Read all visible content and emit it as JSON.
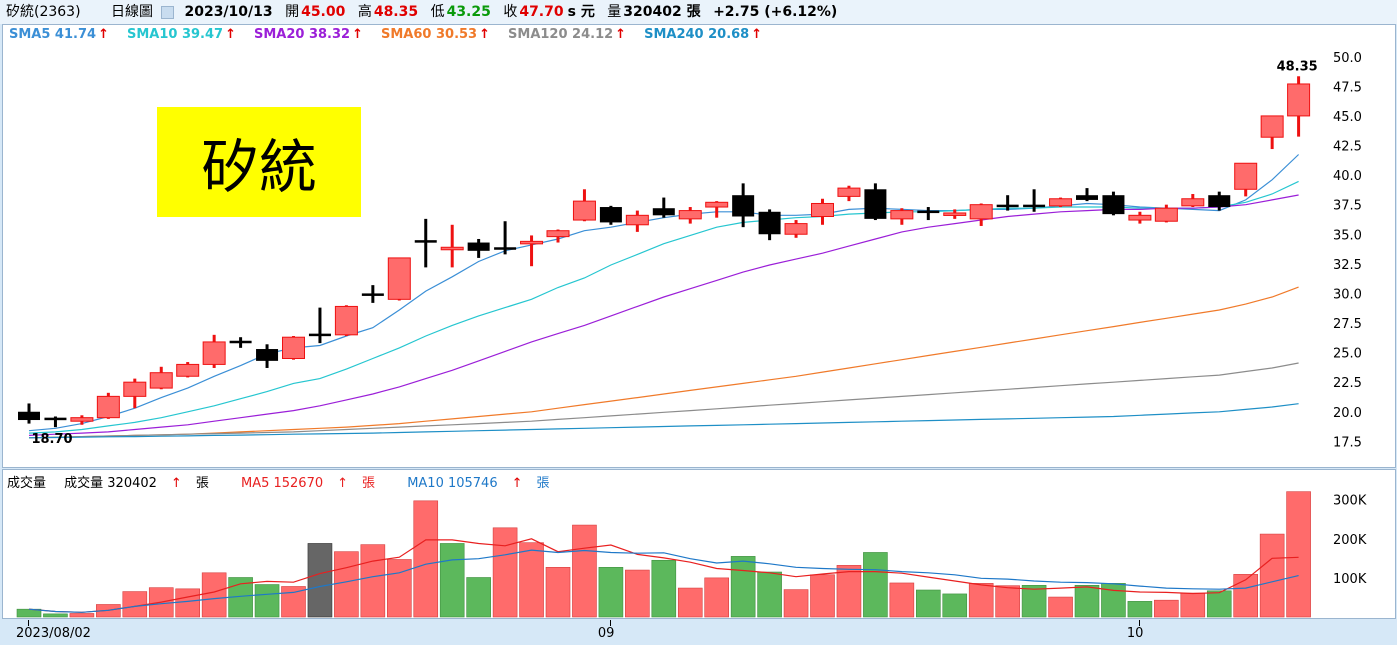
{
  "header": {
    "stock": "矽統(2363)",
    "period": "日線圖",
    "date": "2023/10/13",
    "open_label": "開",
    "open": "45.00",
    "high_label": "高",
    "high": "48.35",
    "low_label": "低",
    "low": "43.25",
    "close_label": "收",
    "close": "47.70",
    "unit": "s 元",
    "volume_label": "量",
    "volume": "320402 張",
    "change": "+2.75 (+6.12%)"
  },
  "title_box": "矽統",
  "sma_legend": [
    {
      "label": "SMA5 41.74",
      "color": "#3b8fd6"
    },
    {
      "label": "SMA10 39.47",
      "color": "#26c6d0"
    },
    {
      "label": "SMA20 38.32",
      "color": "#9b1fd8"
    },
    {
      "label": "SMA60 30.53",
      "color": "#f07a2a"
    },
    {
      "label": "SMA120 24.12",
      "color": "#8c8c8c"
    },
    {
      "label": "SMA240 20.68",
      "color": "#1e8fc6"
    }
  ],
  "vol_legend": {
    "name": "成交量",
    "vol": "成交量 320402",
    "ma5": "MA5 152670",
    "ma10": "MA10 105746",
    "unit": "張"
  },
  "chart_data": {
    "type": "candlestick",
    "max_label": "48.35",
    "min_label": "18.70",
    "price_ticks": [
      50.0,
      47.5,
      45.0,
      42.5,
      40.0,
      37.5,
      35.0,
      32.5,
      30.0,
      27.5,
      25.0,
      22.5,
      20.0,
      17.5
    ],
    "price_range": [
      15.5,
      51.5
    ],
    "volume_ticks": [
      {
        "v": 300000,
        "label": "300K"
      },
      {
        "v": 200000,
        "label": "200K"
      },
      {
        "v": 100000,
        "label": "100K"
      }
    ],
    "volume_max": 340000,
    "x_labels": [
      {
        "index": 0,
        "label": "2023/08/02"
      },
      {
        "index": 22,
        "label": "09"
      },
      {
        "index": 42,
        "label": "10"
      }
    ],
    "candles": [
      {
        "o": 19.3,
        "h": 20.7,
        "l": 19.0,
        "c": 20.0,
        "color": "black"
      },
      {
        "o": 19.5,
        "h": 19.6,
        "l": 18.7,
        "c": 19.4,
        "color": "black"
      },
      {
        "o": 19.2,
        "h": 19.7,
        "l": 18.9,
        "c": 19.5,
        "color": "red"
      },
      {
        "o": 19.5,
        "h": 21.6,
        "l": 19.4,
        "c": 21.3,
        "color": "red"
      },
      {
        "o": 21.3,
        "h": 22.8,
        "l": 20.3,
        "c": 22.5,
        "color": "red"
      },
      {
        "o": 22.0,
        "h": 23.8,
        "l": 21.9,
        "c": 23.3,
        "color": "red"
      },
      {
        "o": 23.0,
        "h": 24.2,
        "l": 22.9,
        "c": 24.0,
        "color": "red"
      },
      {
        "o": 24.0,
        "h": 26.5,
        "l": 23.7,
        "c": 25.9,
        "color": "red"
      },
      {
        "o": 25.8,
        "h": 26.3,
        "l": 25.4,
        "c": 26.0,
        "color": "black"
      },
      {
        "o": 25.3,
        "h": 25.7,
        "l": 23.7,
        "c": 24.3,
        "color": "black"
      },
      {
        "o": 24.5,
        "h": 26.4,
        "l": 24.4,
        "c": 26.3,
        "color": "red"
      },
      {
        "o": 26.5,
        "h": 28.8,
        "l": 25.8,
        "c": 26.6,
        "color": "black"
      },
      {
        "o": 26.5,
        "h": 29.0,
        "l": 26.4,
        "c": 28.9,
        "color": "red"
      },
      {
        "o": 30.0,
        "h": 30.7,
        "l": 29.2,
        "c": 30.0,
        "color": "black"
      },
      {
        "o": 29.5,
        "h": 33.0,
        "l": 29.4,
        "c": 33.0,
        "color": "red"
      },
      {
        "o": 34.5,
        "h": 36.3,
        "l": 32.2,
        "c": 34.5,
        "color": "black"
      },
      {
        "o": 33.8,
        "h": 35.8,
        "l": 32.2,
        "c": 33.9,
        "color": "red"
      },
      {
        "o": 34.3,
        "h": 34.6,
        "l": 33.0,
        "c": 33.6,
        "color": "black"
      },
      {
        "o": 33.9,
        "h": 36.1,
        "l": 33.3,
        "c": 33.8,
        "color": "black"
      },
      {
        "o": 34.2,
        "h": 34.9,
        "l": 32.3,
        "c": 34.4,
        "color": "red"
      },
      {
        "o": 34.8,
        "h": 35.4,
        "l": 34.3,
        "c": 35.3,
        "color": "red"
      },
      {
        "o": 36.2,
        "h": 38.8,
        "l": 36.1,
        "c": 37.8,
        "color": "red"
      },
      {
        "o": 37.3,
        "h": 37.4,
        "l": 35.8,
        "c": 36.0,
        "color": "black"
      },
      {
        "o": 35.8,
        "h": 37.0,
        "l": 35.2,
        "c": 36.6,
        "color": "red"
      },
      {
        "o": 36.6,
        "h": 38.1,
        "l": 36.4,
        "c": 37.2,
        "color": "black"
      },
      {
        "o": 36.3,
        "h": 37.3,
        "l": 35.9,
        "c": 37.0,
        "color": "red"
      },
      {
        "o": 37.3,
        "h": 37.8,
        "l": 36.4,
        "c": 37.7,
        "color": "red"
      },
      {
        "o": 38.3,
        "h": 39.3,
        "l": 35.6,
        "c": 36.5,
        "color": "black"
      },
      {
        "o": 36.9,
        "h": 37.1,
        "l": 34.5,
        "c": 35.0,
        "color": "black"
      },
      {
        "o": 35.0,
        "h": 36.2,
        "l": 34.7,
        "c": 35.9,
        "color": "red"
      },
      {
        "o": 36.5,
        "h": 38.0,
        "l": 35.8,
        "c": 37.6,
        "color": "red"
      },
      {
        "o": 38.2,
        "h": 39.1,
        "l": 37.8,
        "c": 38.9,
        "color": "red"
      },
      {
        "o": 38.8,
        "h": 39.3,
        "l": 36.2,
        "c": 36.3,
        "color": "black"
      },
      {
        "o": 36.3,
        "h": 37.2,
        "l": 35.8,
        "c": 37.0,
        "color": "red"
      },
      {
        "o": 37.0,
        "h": 37.3,
        "l": 36.2,
        "c": 36.8,
        "color": "black"
      },
      {
        "o": 36.7,
        "h": 37.1,
        "l": 36.3,
        "c": 36.8,
        "color": "red"
      },
      {
        "o": 36.3,
        "h": 37.6,
        "l": 35.7,
        "c": 37.5,
        "color": "red"
      },
      {
        "o": 37.5,
        "h": 38.3,
        "l": 37.0,
        "c": 37.5,
        "color": "black"
      },
      {
        "o": 37.5,
        "h": 38.8,
        "l": 36.9,
        "c": 37.4,
        "color": "black"
      },
      {
        "o": 37.4,
        "h": 38.1,
        "l": 37.3,
        "c": 38.0,
        "color": "red"
      },
      {
        "o": 38.3,
        "h": 38.9,
        "l": 37.8,
        "c": 37.9,
        "color": "black"
      },
      {
        "o": 38.3,
        "h": 38.6,
        "l": 36.6,
        "c": 36.7,
        "color": "black"
      },
      {
        "o": 36.2,
        "h": 36.9,
        "l": 35.9,
        "c": 36.6,
        "color": "red"
      },
      {
        "o": 36.1,
        "h": 37.5,
        "l": 36.0,
        "c": 37.2,
        "color": "red"
      },
      {
        "o": 37.4,
        "h": 38.4,
        "l": 37.3,
        "c": 38.0,
        "color": "red"
      },
      {
        "o": 38.3,
        "h": 38.6,
        "l": 37.0,
        "c": 37.3,
        "color": "black"
      },
      {
        "o": 38.8,
        "h": 41.0,
        "l": 38.2,
        "c": 41.0,
        "color": "red"
      },
      {
        "o": 43.2,
        "h": 45.0,
        "l": 42.2,
        "c": 45.0,
        "color": "red"
      },
      {
        "o": 45.0,
        "h": 48.35,
        "l": 43.25,
        "c": 47.7,
        "color": "red"
      }
    ],
    "volumes": [
      {
        "v": 20000,
        "color": "green"
      },
      {
        "v": 8000,
        "color": "green"
      },
      {
        "v": 9000,
        "color": "red"
      },
      {
        "v": 32000,
        "color": "red"
      },
      {
        "v": 65000,
        "color": "red"
      },
      {
        "v": 75000,
        "color": "red"
      },
      {
        "v": 72000,
        "color": "red"
      },
      {
        "v": 113000,
        "color": "red"
      },
      {
        "v": 101000,
        "color": "green"
      },
      {
        "v": 83000,
        "color": "green"
      },
      {
        "v": 78000,
        "color": "red"
      },
      {
        "v": 188000,
        "color": "gray"
      },
      {
        "v": 167000,
        "color": "red"
      },
      {
        "v": 185000,
        "color": "red"
      },
      {
        "v": 147000,
        "color": "red"
      },
      {
        "v": 297000,
        "color": "red"
      },
      {
        "v": 188000,
        "color": "green"
      },
      {
        "v": 101000,
        "color": "green"
      },
      {
        "v": 228000,
        "color": "red"
      },
      {
        "v": 190000,
        "color": "red"
      },
      {
        "v": 127000,
        "color": "red"
      },
      {
        "v": 235000,
        "color": "red"
      },
      {
        "v": 127000,
        "color": "green"
      },
      {
        "v": 120000,
        "color": "red"
      },
      {
        "v": 145000,
        "color": "green"
      },
      {
        "v": 74000,
        "color": "red"
      },
      {
        "v": 100000,
        "color": "red"
      },
      {
        "v": 155000,
        "color": "green"
      },
      {
        "v": 115000,
        "color": "green"
      },
      {
        "v": 70000,
        "color": "red"
      },
      {
        "v": 108000,
        "color": "red"
      },
      {
        "v": 132000,
        "color": "red"
      },
      {
        "v": 165000,
        "color": "green"
      },
      {
        "v": 87000,
        "color": "red"
      },
      {
        "v": 69000,
        "color": "green"
      },
      {
        "v": 59000,
        "color": "green"
      },
      {
        "v": 86000,
        "color": "red"
      },
      {
        "v": 80000,
        "color": "red"
      },
      {
        "v": 81000,
        "color": "green"
      },
      {
        "v": 51000,
        "color": "red"
      },
      {
        "v": 81000,
        "color": "green"
      },
      {
        "v": 86000,
        "color": "green"
      },
      {
        "v": 40000,
        "color": "green"
      },
      {
        "v": 43000,
        "color": "red"
      },
      {
        "v": 61000,
        "color": "red"
      },
      {
        "v": 67000,
        "color": "green"
      },
      {
        "v": 109000,
        "color": "red"
      },
      {
        "v": 212000,
        "color": "red"
      },
      {
        "v": 320402,
        "color": "red"
      }
    ],
    "sma_lines": [
      {
        "name": "SMA5",
        "color": "#3b8fd6",
        "values": [
          18.4,
          18.6,
          19.0,
          19.6,
          20.3,
          21.2,
          22.0,
          23.0,
          23.9,
          24.9,
          25.4,
          25.6,
          26.4,
          27.1,
          28.6,
          30.2,
          31.4,
          32.7,
          33.6,
          34.1,
          34.6,
          35.3,
          35.6,
          36.0,
          36.4,
          36.7,
          36.9,
          36.9,
          36.6,
          36.6,
          36.7,
          37.1,
          37.2,
          37.1,
          37.0,
          37.0,
          37.1,
          37.1,
          37.2,
          37.4,
          37.6,
          37.5,
          37.3,
          37.2,
          37.1,
          37.0,
          37.9,
          39.6,
          41.74
        ]
      },
      {
        "name": "SMA10",
        "color": "#26c6d0",
        "values": [
          18.2,
          18.3,
          18.5,
          18.8,
          19.1,
          19.5,
          20.0,
          20.5,
          21.1,
          21.7,
          22.4,
          22.8,
          23.6,
          24.5,
          25.4,
          26.4,
          27.3,
          28.1,
          28.8,
          29.5,
          30.5,
          31.3,
          32.4,
          33.3,
          34.2,
          34.9,
          35.6,
          36.0,
          36.2,
          36.4,
          36.5,
          36.7,
          36.8,
          36.9,
          36.9,
          37.0,
          37.1,
          37.2,
          37.2,
          37.3,
          37.3,
          37.3,
          37.2,
          37.2,
          37.2,
          37.3,
          37.7,
          38.4,
          39.47
        ]
      },
      {
        "name": "SMA20",
        "color": "#9b1fd8",
        "values": [
          18.0,
          18.1,
          18.2,
          18.3,
          18.5,
          18.7,
          18.9,
          19.2,
          19.5,
          19.8,
          20.1,
          20.5,
          21.0,
          21.5,
          22.1,
          22.8,
          23.5,
          24.3,
          25.1,
          25.9,
          26.6,
          27.3,
          28.1,
          28.9,
          29.7,
          30.4,
          31.1,
          31.8,
          32.4,
          32.9,
          33.4,
          34.0,
          34.6,
          35.2,
          35.6,
          35.9,
          36.2,
          36.5,
          36.7,
          36.9,
          37.0,
          37.1,
          37.1,
          37.2,
          37.2,
          37.3,
          37.5,
          37.9,
          38.32
        ]
      },
      {
        "name": "SMA60",
        "color": "#f07a2a",
        "values": [
          17.8,
          17.85,
          17.9,
          17.95,
          18.0,
          18.05,
          18.1,
          18.2,
          18.3,
          18.4,
          18.5,
          18.6,
          18.7,
          18.85,
          19.0,
          19.2,
          19.4,
          19.6,
          19.8,
          20.0,
          20.3,
          20.6,
          20.9,
          21.2,
          21.5,
          21.8,
          22.1,
          22.4,
          22.7,
          23.0,
          23.35,
          23.7,
          24.05,
          24.4,
          24.75,
          25.1,
          25.45,
          25.8,
          26.15,
          26.5,
          26.85,
          27.2,
          27.55,
          27.9,
          28.25,
          28.6,
          29.1,
          29.7,
          30.53
        ]
      },
      {
        "name": "SMA120",
        "color": "#8c8c8c",
        "values": [
          17.8,
          17.85,
          17.9,
          17.95,
          18.0,
          18.05,
          18.1,
          18.15,
          18.2,
          18.25,
          18.3,
          18.4,
          18.5,
          18.6,
          18.7,
          18.8,
          18.9,
          19.0,
          19.1,
          19.2,
          19.35,
          19.5,
          19.65,
          19.8,
          19.95,
          20.1,
          20.25,
          20.4,
          20.55,
          20.7,
          20.85,
          21.0,
          21.15,
          21.3,
          21.45,
          21.6,
          21.75,
          21.9,
          22.05,
          22.2,
          22.35,
          22.5,
          22.65,
          22.8,
          22.95,
          23.1,
          23.4,
          23.7,
          24.12
        ]
      },
      {
        "name": "SMA240",
        "color": "#1e8fc6",
        "values": [
          17.8,
          17.82,
          17.85,
          17.88,
          17.9,
          17.93,
          17.96,
          18.0,
          18.03,
          18.06,
          18.1,
          18.13,
          18.16,
          18.2,
          18.25,
          18.3,
          18.35,
          18.4,
          18.45,
          18.5,
          18.55,
          18.6,
          18.65,
          18.7,
          18.75,
          18.8,
          18.85,
          18.9,
          18.95,
          19.0,
          19.05,
          19.1,
          19.15,
          19.2,
          19.25,
          19.3,
          19.35,
          19.4,
          19.45,
          19.5,
          19.55,
          19.6,
          19.7,
          19.8,
          19.9,
          20.0,
          20.2,
          20.4,
          20.68
        ]
      }
    ],
    "vol_ma_lines": [
      {
        "name": "MA5",
        "color": "#e82020",
        "values": [
          20000,
          14000,
          12000,
          17000,
          27000,
          38000,
          51000,
          64000,
          85000,
          91000,
          89000,
          111000,
          126000,
          143000,
          153000,
          197000,
          197000,
          188000,
          182000,
          200000,
          167000,
          176000,
          184000,
          160000,
          151000,
          140000,
          124000,
          119000,
          113000,
          103000,
          110000,
          116000,
          116000,
          112000,
          102000,
          92000,
          82000,
          75000,
          71000,
          74000,
          77000,
          68000,
          64000,
          63000,
          60000,
          62000,
          95000,
          150000,
          152670
        ]
      },
      {
        "name": "MA10",
        "color": "#1e78c8",
        "values": [
          20000,
          14000,
          12000,
          17000,
          27000,
          34000,
          40000,
          47000,
          53000,
          58000,
          63000,
          78000,
          90000,
          103000,
          113000,
          135000,
          146000,
          149000,
          159000,
          171000,
          165000,
          170000,
          165000,
          163000,
          164000,
          149000,
          138000,
          143000,
          136000,
          127000,
          124000,
          122000,
          121000,
          116000,
          113000,
          108000,
          99000,
          97000,
          92000,
          89000,
          88000,
          85000,
          79000,
          74000,
          72000,
          71000,
          74000,
          90000,
          105746
        ]
      }
    ]
  }
}
